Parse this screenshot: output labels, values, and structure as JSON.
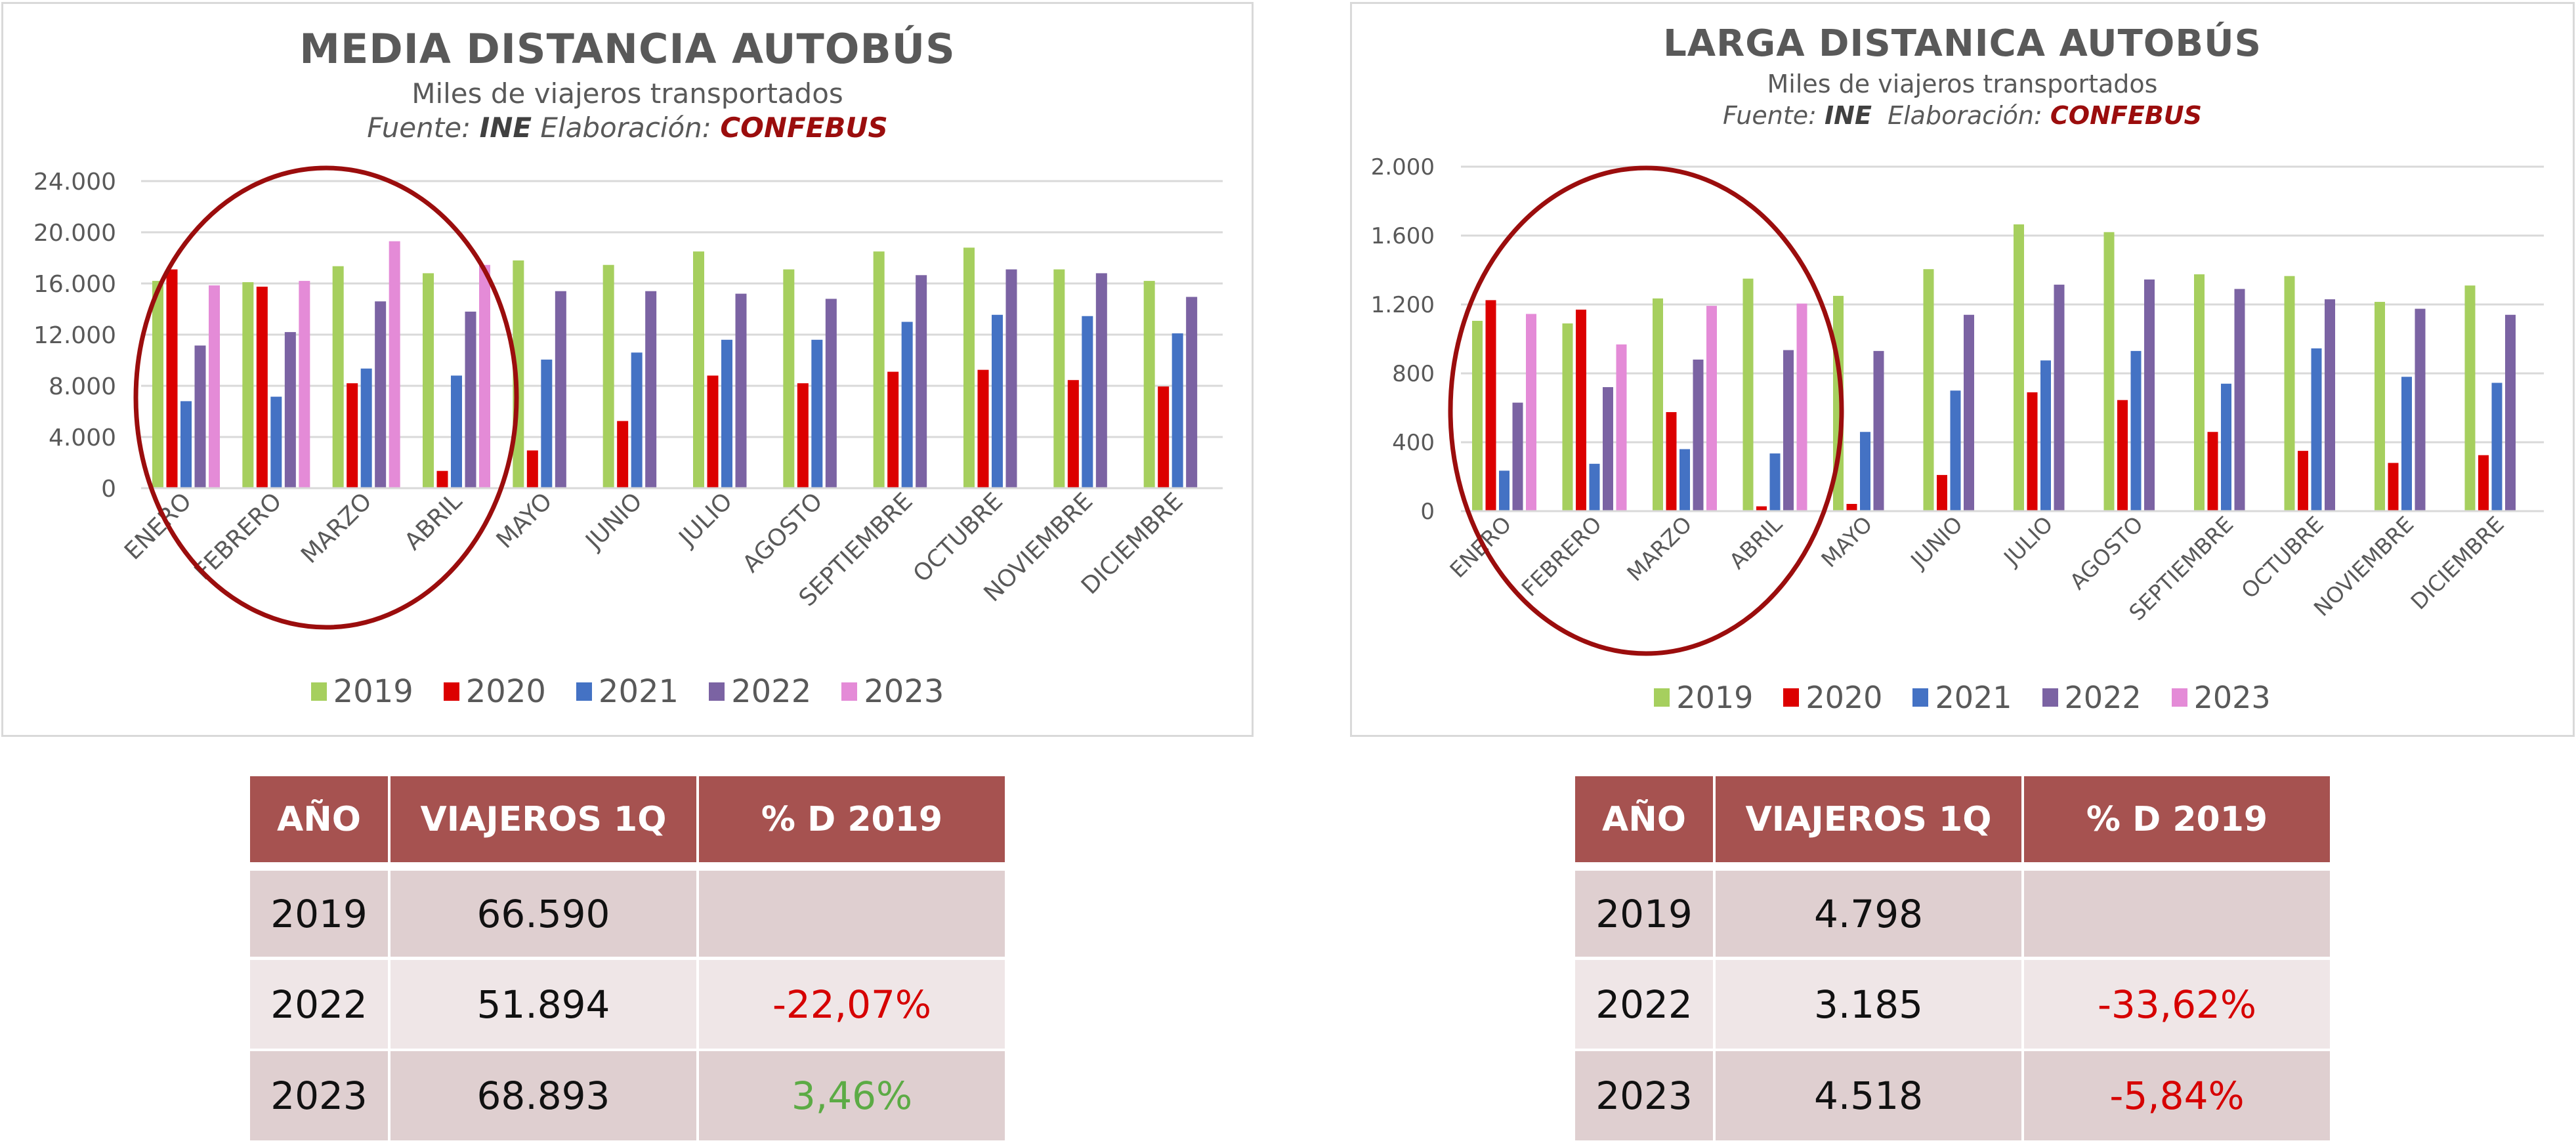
{
  "colors": {
    "series": {
      "2019": "#a6cf5e",
      "2020": "#dc0000",
      "2021": "#4472c4",
      "2022": "#7b63a3",
      "2023": "#e48bd7"
    },
    "header_bg": "#a65250",
    "row_dark": "#dfcfd0",
    "row_light": "#efe6e7",
    "negative": "#d60000",
    "positive": "#5cab45",
    "highlight_circle": "#9b0d0d",
    "brand": "#9b0d0d"
  },
  "chart_data": [
    {
      "type": "bar",
      "title": "MEDIA DISTANCIA AUTOBÚS",
      "subtitle": "Miles de viajeros transportados",
      "source_prefix": "Fuente:",
      "source_name": "INE",
      "elab_prefix": "Elaboración:",
      "elab_name": "CONFEBUS",
      "xlabel": "",
      "ylabel": "",
      "ylim": [
        0,
        24000
      ],
      "yticks": [
        0,
        4000,
        8000,
        12000,
        16000,
        20000,
        24000
      ],
      "ytick_labels": [
        "0",
        "4.000",
        "8.000",
        "12.000",
        "16.000",
        "20.000",
        "24.000"
      ],
      "grid": true,
      "legend_position": "bottom",
      "highlight": "ellipse around ENERO–ABRIL",
      "categories": [
        "ENERO",
        "FEBRERO",
        "MARZO",
        "ABRIL",
        "MAYO",
        "JUNIO",
        "JULIO",
        "AGOSTO",
        "SEPTIEMBRE",
        "OCTUBRE",
        "NOVIEMBRE",
        "DICIEMBRE"
      ],
      "series": [
        {
          "name": "2019",
          "values": [
            16200,
            16100,
            17350,
            16800,
            17800,
            17450,
            18500,
            17100,
            18500,
            18800,
            17100,
            16200
          ]
        },
        {
          "name": "2020",
          "values": [
            17100,
            15750,
            8200,
            1350,
            2950,
            5250,
            8800,
            8200,
            9100,
            9250,
            8450,
            7950
          ]
        },
        {
          "name": "2021",
          "values": [
            6800,
            7150,
            9350,
            8800,
            10050,
            10600,
            11600,
            11600,
            13000,
            13550,
            13450,
            12100
          ]
        },
        {
          "name": "2022",
          "values": [
            11150,
            12200,
            14600,
            13800,
            15400,
            15400,
            15200,
            14800,
            16650,
            17100,
            16800,
            14950
          ]
        },
        {
          "name": "2023",
          "values": [
            15850,
            16200,
            19300,
            17450,
            null,
            null,
            null,
            null,
            null,
            null,
            null,
            null
          ]
        }
      ]
    },
    {
      "type": "bar",
      "title": "LARGA DISTANICA AUTOBÚS",
      "subtitle": "Miles de viajeros transportados",
      "source_prefix": "Fuente:",
      "source_name": "INE",
      "elab_prefix": "Elaboración:",
      "elab_name": "CONFEBUS",
      "xlabel": "",
      "ylabel": "",
      "ylim": [
        0,
        2000
      ],
      "yticks": [
        0,
        400,
        800,
        1200,
        1600,
        2000
      ],
      "ytick_labels": [
        "0",
        "400",
        "800",
        "1.200",
        "1.600",
        "2.000"
      ],
      "grid": true,
      "legend_position": "bottom",
      "highlight": "ellipse around ENERO–ABRIL",
      "categories": [
        "ENERO",
        "FEBRERO",
        "MARZO",
        "ABRIL",
        "MAYO",
        "JUNIO",
        "JULIO",
        "AGOSTO",
        "SEPTIEMBRE",
        "OCTUBRE",
        "NOVIEMBRE",
        "DICIEMBRE"
      ],
      "series": [
        {
          "name": "2019",
          "values": [
            1105,
            1090,
            1235,
            1350,
            1250,
            1405,
            1665,
            1620,
            1375,
            1365,
            1215,
            1310
          ]
        },
        {
          "name": "2020",
          "values": [
            1225,
            1170,
            575,
            28,
            42,
            210,
            690,
            645,
            460,
            350,
            280,
            325
          ]
        },
        {
          "name": "2021",
          "values": [
            235,
            275,
            360,
            335,
            460,
            700,
            875,
            930,
            740,
            945,
            780,
            745
          ]
        },
        {
          "name": "2022",
          "values": [
            630,
            720,
            880,
            935,
            930,
            1140,
            1315,
            1345,
            1290,
            1230,
            1175,
            1140
          ]
        },
        {
          "name": "2023",
          "values": [
            1145,
            968,
            1192,
            1205,
            null,
            null,
            null,
            null,
            null,
            null,
            null,
            null
          ]
        }
      ]
    }
  ],
  "tables": [
    {
      "headers": [
        "AÑO",
        "VIAJEROS 1Q",
        "% D 2019"
      ],
      "rows": [
        {
          "year": "2019",
          "viajeros": "66.590",
          "pct": "",
          "pct_sign": ""
        },
        {
          "year": "2022",
          "viajeros": "51.894",
          "pct": "-22,07%",
          "pct_sign": "neg"
        },
        {
          "year": "2023",
          "viajeros": "68.893",
          "pct": "3,46%",
          "pct_sign": "pos"
        }
      ]
    },
    {
      "headers": [
        "AÑO",
        "VIAJEROS 1Q",
        "% D 2019"
      ],
      "rows": [
        {
          "year": "2019",
          "viajeros": "4.798",
          "pct": "",
          "pct_sign": ""
        },
        {
          "year": "2022",
          "viajeros": "3.185",
          "pct": "-33,62%",
          "pct_sign": "neg"
        },
        {
          "year": "2023",
          "viajeros": "4.518",
          "pct": "-5,84%",
          "pct_sign": "neg"
        }
      ]
    }
  ]
}
